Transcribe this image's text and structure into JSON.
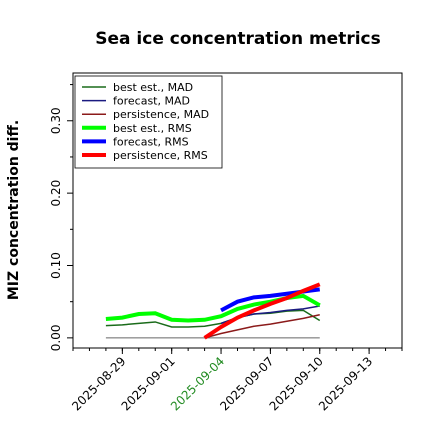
{
  "chart_data": {
    "type": "line",
    "title": "Sea ice concentration metrics",
    "y_label": "MIZ concentration diff.",
    "x": [
      "2025-08-28",
      "2025-08-29",
      "2025-08-30",
      "2025-08-31",
      "2025-09-01",
      "2025-09-02",
      "2025-09-03",
      "2025-09-04",
      "2025-09-05",
      "2025-09-06",
      "2025-09-07",
      "2025-09-08",
      "2025-09-09",
      "2025-09-10"
    ],
    "series": [
      {
        "name": "best est., MAD",
        "color": "#1a6b1a",
        "width": 1.5,
        "values": [
          0.017,
          0.018,
          0.02,
          0.022,
          0.015,
          0.015,
          0.016,
          0.02,
          0.028,
          0.033,
          0.034,
          0.037,
          0.038,
          0.024
        ]
      },
      {
        "name": "forecast,  MAD",
        "color": "#1a1a80",
        "width": 1.5,
        "values": [
          null,
          null,
          null,
          null,
          null,
          null,
          null,
          0.02,
          0.028,
          0.033,
          0.035,
          0.038,
          0.04,
          0.044
        ]
      },
      {
        "name": "persistence, MAD",
        "color": "#8b1a1a",
        "width": 1.5,
        "values": [
          null,
          null,
          null,
          null,
          null,
          null,
          0.0,
          0.006,
          0.011,
          0.016,
          0.019,
          0.023,
          0.027,
          0.032
        ]
      },
      {
        "name": "best est., RMS",
        "color": "#00ff00",
        "width": 4,
        "values": [
          0.026,
          0.028,
          0.033,
          0.034,
          0.025,
          0.024,
          0.025,
          0.03,
          0.04,
          0.046,
          0.05,
          0.055,
          0.058,
          0.045
        ]
      },
      {
        "name": "forecast,  RMS",
        "color": "#0000ff",
        "width": 4,
        "values": [
          null,
          null,
          null,
          null,
          null,
          null,
          null,
          0.038,
          0.05,
          0.056,
          0.058,
          0.061,
          0.064,
          0.067
        ]
      },
      {
        "name": "persistence, RMS",
        "color": "#ff0000",
        "width": 4,
        "values": [
          null,
          null,
          null,
          null,
          null,
          null,
          0.0,
          0.015,
          0.028,
          0.038,
          0.047,
          0.055,
          0.065,
          0.074
        ]
      }
    ],
    "xlim": [
      "2025-08-26",
      "2025-09-15"
    ],
    "xticks": [
      "2025-08-29",
      "2025-09-01",
      "2025-09-04",
      "2025-09-07",
      "2025-09-10",
      "2025-09-13"
    ],
    "xtick_colors": [
      "#000000",
      "#000000",
      "#228b22",
      "#000000",
      "#000000",
      "#000000"
    ],
    "ylim": [
      -0.014,
      0.366
    ],
    "yticks": [
      {
        "value": 0,
        "label": "0.00"
      },
      {
        "value": 0.1,
        "label": "0.10"
      },
      {
        "value": 0.2,
        "label": "0.20"
      },
      {
        "value": 0.3,
        "label": "0.30"
      }
    ],
    "yminorticks": [
      0.05,
      0.15,
      0.25,
      0.35
    ],
    "legend": "upper left"
  }
}
